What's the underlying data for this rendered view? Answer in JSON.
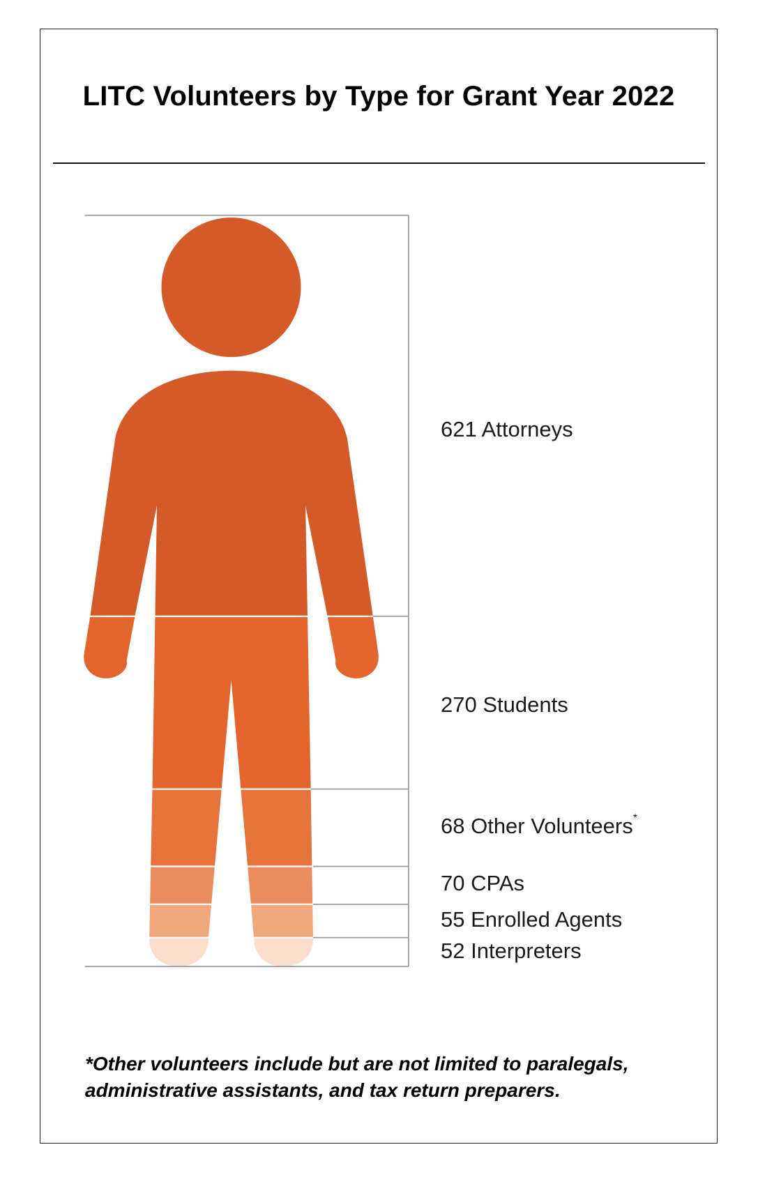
{
  "chart_data": {
    "type": "bar",
    "title": "LITC Volunteers by Type for Grant Year 2022",
    "categories": [
      "Attorneys",
      "Students",
      "Other Volunteers",
      "CPAs",
      "Enrolled Agents",
      "Interpreters"
    ],
    "values": [
      621,
      270,
      68,
      70,
      55,
      52
    ],
    "labels": [
      "621 Attorneys",
      "270 Students",
      "68 Other Volunteers",
      "70 CPAs",
      "55 Enrolled Agents",
      "52 Interpreters"
    ],
    "label_marks": [
      "",
      "",
      "*",
      "",
      "",
      ""
    ],
    "colors": [
      "#D45A29",
      "#E2652E",
      "#E5733B",
      "#EB8C5E",
      "#F0A77D",
      "#FADFCE"
    ],
    "style": "stacked pictograph of a person",
    "footnote_lines": [
      "*Other volunteers include but are not limited to paralegals,",
      "administrative assistants, and tax return preparers."
    ]
  }
}
